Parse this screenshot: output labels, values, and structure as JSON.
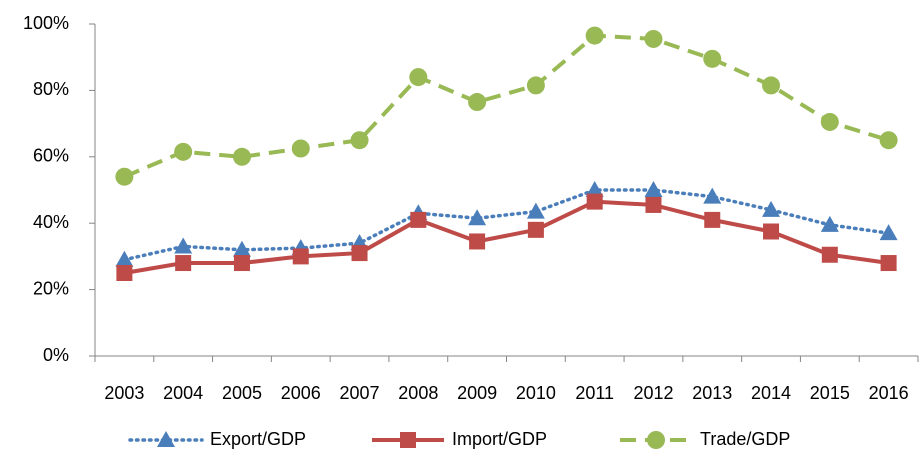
{
  "chart_data": {
    "type": "line",
    "categories": [
      "2003",
      "2004",
      "2005",
      "2006",
      "2007",
      "2008",
      "2009",
      "2010",
      "2011",
      "2012",
      "2013",
      "2014",
      "2015",
      "2016"
    ],
    "series": [
      {
        "name": "Export/GDP",
        "color": "#4a7ebb",
        "line_style": "dotted",
        "marker": "triangle",
        "values": [
          29,
          33,
          32,
          32.5,
          34,
          43,
          41.5,
          43.5,
          50,
          50,
          48,
          44,
          39.5,
          37
        ]
      },
      {
        "name": "Import/GDP",
        "color": "#be4b48",
        "line_style": "solid",
        "marker": "square",
        "values": [
          25,
          28,
          28,
          30,
          31,
          41,
          34.5,
          38,
          46.5,
          45.5,
          41,
          37.5,
          30.5,
          28
        ]
      },
      {
        "name": "Trade/GDP",
        "color": "#98b954",
        "line_style": "dashed",
        "marker": "circle",
        "values": [
          54,
          61.5,
          60,
          62.5,
          65,
          84,
          76.5,
          81.5,
          96.5,
          95.5,
          89.5,
          81.5,
          70.5,
          65
        ]
      }
    ],
    "ylim": [
      0,
      100
    ],
    "yticks": [
      {
        "value": 0,
        "label": "0%"
      },
      {
        "value": 20,
        "label": "20%"
      },
      {
        "value": 40,
        "label": "40%"
      },
      {
        "value": 60,
        "label": "60%"
      },
      {
        "value": 80,
        "label": "80%"
      },
      {
        "value": 100,
        "label": "100%"
      }
    ],
    "grid": false,
    "legend": "bottom"
  }
}
